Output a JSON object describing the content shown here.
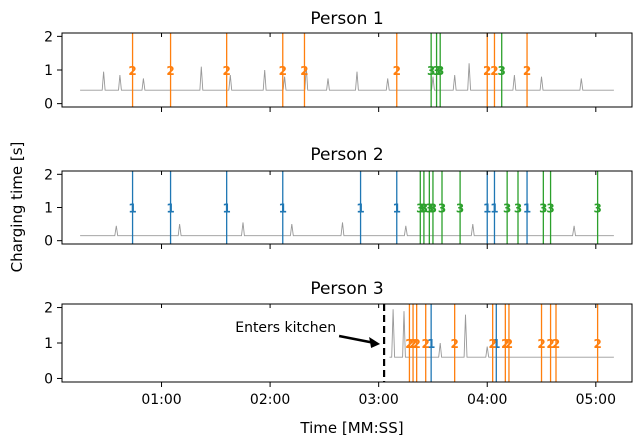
{
  "figure": {
    "ylabel": "Charging time [s]",
    "xlabel": "Time [MM:SS]"
  },
  "colors": {
    "person1": "#1f77b4",
    "person2": "#ff7f0e",
    "person3": "#2ca02c",
    "signal": "#999999",
    "axis": "#000000"
  },
  "chart_data": [
    {
      "type": "line",
      "title": "Person 1",
      "xlim": [
        5,
        320
      ],
      "ylim": [
        -0.1,
        2.1
      ],
      "yticks": [
        "0",
        "1",
        "2"
      ],
      "xticks": [
        {
          "label": "01:00",
          "x": 60
        },
        {
          "label": "02:00",
          "x": 120
        },
        {
          "label": "03:00",
          "x": 180
        },
        {
          "label": "04:00",
          "x": 240
        },
        {
          "label": "05:00",
          "x": 300
        }
      ],
      "series": [
        {
          "person": 2,
          "label": "2",
          "events_s": [
            44,
            65,
            96,
            127,
            139,
            190,
            240,
            244,
            262
          ]
        },
        {
          "person": 3,
          "label": "3",
          "events_s": [
            209,
            212,
            214,
            248
          ]
        }
      ],
      "baseline": {
        "x_range": [
          15,
          310
        ],
        "level": 0.4,
        "spikes": [
          {
            "x": 28,
            "h": 0.55
          },
          {
            "x": 37,
            "h": 0.45
          },
          {
            "x": 50,
            "h": 0.35
          },
          {
            "x": 82,
            "h": 0.7
          },
          {
            "x": 98,
            "h": 0.45
          },
          {
            "x": 117,
            "h": 0.6
          },
          {
            "x": 128,
            "h": 0.4
          },
          {
            "x": 140,
            "h": 0.7
          },
          {
            "x": 152,
            "h": 0.35
          },
          {
            "x": 168,
            "h": 0.55
          },
          {
            "x": 185,
            "h": 0.35
          },
          {
            "x": 210,
            "h": 0.4
          },
          {
            "x": 222,
            "h": 0.45
          },
          {
            "x": 230,
            "h": 0.8
          },
          {
            "x": 255,
            "h": 0.45
          },
          {
            "x": 270,
            "h": 0.4
          },
          {
            "x": 292,
            "h": 0.35
          }
        ]
      }
    },
    {
      "type": "line",
      "title": "Person 2",
      "xlim": [
        5,
        320
      ],
      "ylim": [
        -0.1,
        2.1
      ],
      "yticks": [
        "0",
        "1",
        "2"
      ],
      "xticks": [
        {
          "label": "01:00",
          "x": 60
        },
        {
          "label": "02:00",
          "x": 120
        },
        {
          "label": "03:00",
          "x": 180
        },
        {
          "label": "04:00",
          "x": 240
        },
        {
          "label": "05:00",
          "x": 300
        }
      ],
      "series": [
        {
          "person": 1,
          "label": "1",
          "events_s": [
            44,
            65,
            96,
            127,
            170,
            190,
            240,
            244,
            262
          ]
        },
        {
          "person": 3,
          "label": "3",
          "events_s": [
            203,
            205,
            208,
            210,
            215,
            225,
            251,
            257,
            271,
            275,
            301
          ]
        }
      ],
      "baseline": {
        "x_range": [
          15,
          310
        ],
        "level": 0.15,
        "spikes": [
          {
            "x": 35,
            "h": 0.3
          },
          {
            "x": 70,
            "h": 0.35
          },
          {
            "x": 105,
            "h": 0.4
          },
          {
            "x": 132,
            "h": 0.35
          },
          {
            "x": 160,
            "h": 0.4
          },
          {
            "x": 195,
            "h": 0.3
          },
          {
            "x": 232,
            "h": 0.35
          },
          {
            "x": 288,
            "h": 0.3
          }
        ]
      }
    },
    {
      "type": "line",
      "title": "Person 3",
      "xlim": [
        5,
        320
      ],
      "ylim": [
        -0.1,
        2.1
      ],
      "yticks": [
        "0",
        "1",
        "2"
      ],
      "xticks": [
        {
          "label": "01:00",
          "x": 60
        },
        {
          "label": "02:00",
          "x": 120
        },
        {
          "label": "03:00",
          "x": 180
        },
        {
          "label": "04:00",
          "x": 240
        },
        {
          "label": "05:00",
          "x": 300
        }
      ],
      "annotation": {
        "text": "Enters kitchen",
        "x_s": 183
      },
      "series": [
        {
          "person": 1,
          "label": "1",
          "events_s": [
            209,
            245
          ]
        },
        {
          "person": 2,
          "label": "2",
          "events_s": [
            197,
            199,
            201,
            206,
            222,
            243,
            250,
            252,
            270,
            275,
            278,
            301
          ]
        }
      ],
      "baseline": {
        "x_range": [
          186,
          310
        ],
        "level": 0.6,
        "spikes": [
          {
            "x": 188,
            "h": 1.35
          },
          {
            "x": 194,
            "h": 1.3
          },
          {
            "x": 214,
            "h": 0.4
          },
          {
            "x": 228,
            "h": 1.2
          },
          {
            "x": 240,
            "h": 0.3
          }
        ]
      }
    }
  ]
}
